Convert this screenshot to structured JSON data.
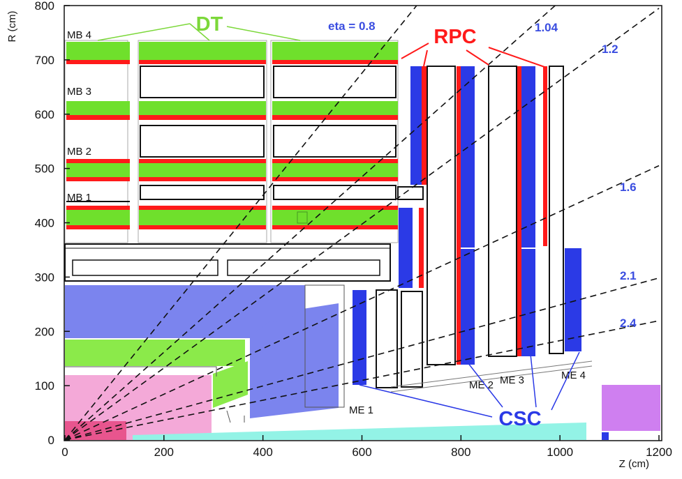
{
  "axes": {
    "x_label": "Z (cm)",
    "y_label": "R (cm)",
    "x_ticks": [
      "0",
      "200",
      "400",
      "600",
      "800",
      "1000",
      "1200"
    ],
    "y_ticks": [
      "0",
      "100",
      "200",
      "300",
      "400",
      "500",
      "600",
      "700",
      "800"
    ],
    "x_range": [
      0,
      1200
    ],
    "y_range": [
      0,
      800
    ]
  },
  "eta_lines": [
    {
      "label": "eta = 0.8",
      "value": 0.8
    },
    {
      "label": "1.04",
      "value": 1.04
    },
    {
      "label": "1.2",
      "value": 1.2
    },
    {
      "label": "1.6",
      "value": 1.6
    },
    {
      "label": "2.1",
      "value": 2.1
    },
    {
      "label": "2.4",
      "value": 2.4
    }
  ],
  "barrel_stations": [
    "MB 4",
    "MB 3",
    "MB 2",
    "MB 1"
  ],
  "endcap_stations": [
    "ME 1",
    "ME 2",
    "ME 3",
    "ME 4"
  ],
  "detector_labels": {
    "dt": "DT",
    "rpc": "RPC",
    "csc": "CSC"
  },
  "colors": {
    "dt": "#6fe02c",
    "rpc": "#ff1a1a",
    "csc": "#2b3ae6",
    "csc_label": "#2b3ae6",
    "rpc_label": "#ff1a1a",
    "dt_label": "#7cd83a",
    "hcal": "#7b84ee",
    "ecal": "#8bea4a",
    "tracker": "#f4a9d8",
    "pixel": "#e8558e",
    "beampipe": "#93f3e6",
    "forward": "#cf7ff0",
    "eta_label": "#3a4de0"
  }
}
